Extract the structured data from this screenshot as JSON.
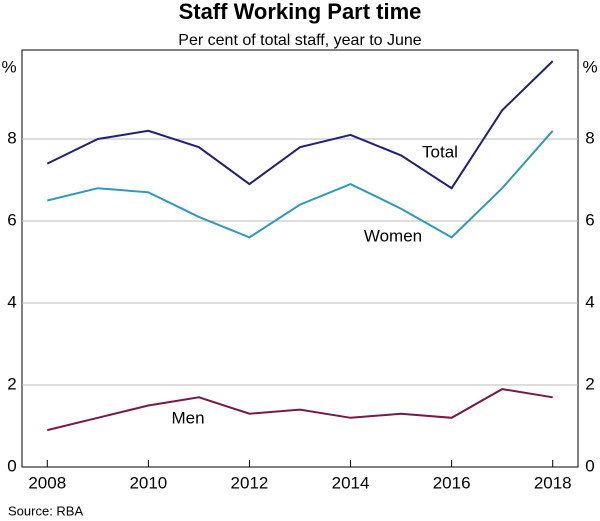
{
  "chart_data": {
    "type": "line",
    "title": "Staff Working Part time",
    "subtitle": "Per cent of total staff, year to June",
    "y_unit": "%",
    "source": "Source:   RBA",
    "x": [
      2008,
      2009,
      2010,
      2011,
      2012,
      2013,
      2014,
      2015,
      2016,
      2017,
      2018
    ],
    "series": [
      {
        "name": "Total",
        "color": "#202078",
        "values": [
          7.4,
          8.0,
          8.2,
          7.8,
          6.9,
          7.8,
          8.1,
          7.6,
          6.8,
          8.7,
          9.9
        ]
      },
      {
        "name": "Women",
        "color": "#2f98bb",
        "values": [
          6.5,
          6.8,
          6.7,
          6.1,
          5.6,
          6.4,
          6.9,
          6.3,
          5.6,
          6.8,
          8.2
        ]
      },
      {
        "name": "Men",
        "color": "#761a4a",
        "values": [
          0.9,
          1.2,
          1.5,
          1.7,
          1.3,
          1.4,
          1.2,
          1.3,
          1.2,
          1.9,
          1.7
        ]
      }
    ],
    "xlim": [
      2007.5,
      2018.5
    ],
    "xticks": [
      2008,
      2010,
      2012,
      2014,
      2016,
      2018
    ],
    "ylim": [
      0,
      10
    ],
    "yticks": [
      0,
      2,
      4,
      6,
      8
    ],
    "grid": true
  }
}
